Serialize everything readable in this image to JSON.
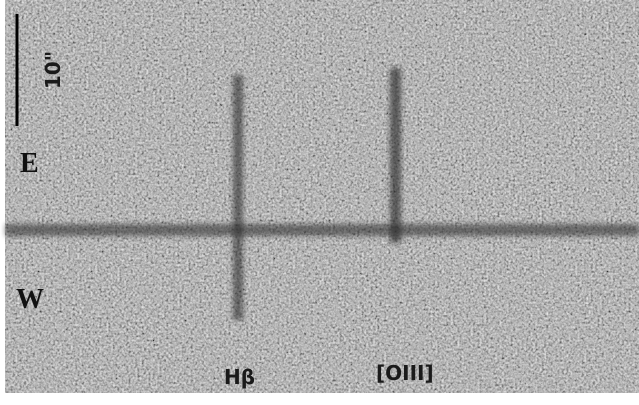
{
  "scale_bar": {
    "label": "10\""
  },
  "orientation": {
    "top": "E",
    "bottom": "W"
  },
  "lines": [
    {
      "label": "Hβ"
    },
    {
      "label": "[OIII]"
    }
  ]
}
